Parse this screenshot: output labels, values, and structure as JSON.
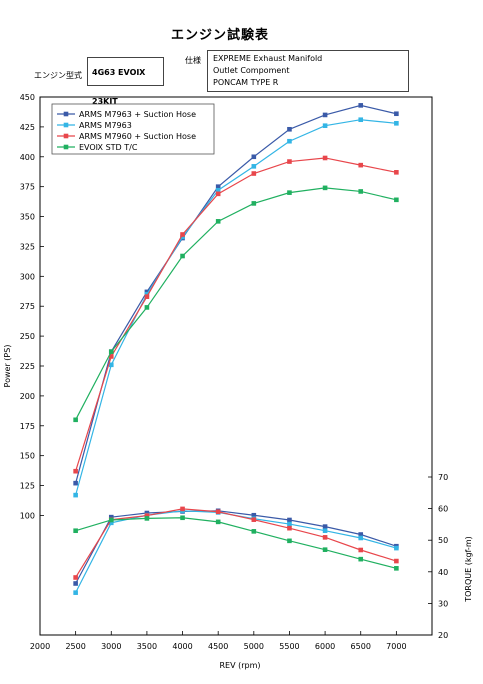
{
  "header": {
    "title": "エンジン試験表",
    "engine_label": "エンジン型式",
    "engine_value": "4G63 EVOⅨ 23KIT",
    "spec_label": "仕様",
    "spec_lines": [
      "EXPREME Exhaust Manifold",
      "Outlet Compoment",
      "PONCAM TYPE R"
    ]
  },
  "colors": {
    "M7963_suction": "#3a5aa8",
    "M7963": "#33b5e5",
    "M7960_suction": "#e8464b",
    "STD": "#20b060"
  },
  "chart_data": {
    "type": "line",
    "xlabel": "REV (rpm)",
    "ylabel": "Power (PS)",
    "y2label": "TORQUE (kgf-m)",
    "xlim": [
      2000,
      7500
    ],
    "ylim": [
      0,
      450
    ],
    "y2lim": [
      20,
      70
    ],
    "grid": false,
    "legend_position": "top-left",
    "x_ticks": [
      "2000",
      "2500",
      "3000",
      "3500",
      "4000",
      "4500",
      "5000",
      "5500",
      "6000",
      "6500",
      "7000"
    ],
    "y_ticks": [
      "100",
      "125",
      "150",
      "175",
      "200",
      "225",
      "250",
      "275",
      "300",
      "325",
      "350",
      "375",
      "400",
      "425",
      "450"
    ],
    "y2_ticks": [
      "20",
      "30",
      "40",
      "50",
      "60",
      "70"
    ],
    "x": [
      2500,
      3000,
      3500,
      4000,
      4500,
      5000,
      5500,
      6000,
      6500,
      7000
    ],
    "power_series": [
      {
        "name": "ARMS M7963 + Suction Hose",
        "color": "#3a5aa8",
        "values": [
          127,
          237,
          287,
          332,
          375,
          400,
          423,
          435,
          443,
          436
        ]
      },
      {
        "name": "ARMS M7963",
        "color": "#33b5e5",
        "values": [
          117,
          226,
          285,
          333,
          372,
          392,
          413,
          426,
          431,
          428
        ]
      },
      {
        "name": "ARMS M7960 + Suction Hose",
        "color": "#e8464b",
        "values": [
          137,
          233,
          283,
          335,
          369,
          386,
          396,
          399,
          393,
          387
        ]
      },
      {
        "name": "EVOⅨ STD T/C",
        "color": "#20b060",
        "values": [
          180,
          237,
          274,
          317,
          346,
          361,
          370,
          374,
          371,
          364
        ]
      }
    ],
    "torque_series": [
      {
        "name": "ARMS M7963 + Suction Hose",
        "color": "#3a5aa8",
        "values": [
          36.3,
          57.3,
          58.6,
          59.1,
          59.3,
          57.9,
          56.4,
          54.3,
          51.8,
          48.1
        ]
      },
      {
        "name": "ARMS M7963",
        "color": "#33b5e5",
        "values": [
          33.4,
          55.5,
          57.9,
          59.3,
          58.8,
          56.8,
          55.1,
          53.0,
          50.7,
          47.5
        ]
      },
      {
        "name": "ARMS M7960 + Suction Hose",
        "color": "#e8464b",
        "values": [
          38.2,
          56.5,
          57.8,
          59.9,
          59.0,
          56.5,
          53.8,
          50.9,
          46.9,
          43.4
        ]
      },
      {
        "name": "EVOⅨ STD T/C",
        "color": "#20b060",
        "values": [
          53.0,
          56.4,
          56.9,
          57.1,
          55.8,
          52.8,
          49.8,
          47.0,
          44.0,
          41.1
        ]
      }
    ]
  }
}
